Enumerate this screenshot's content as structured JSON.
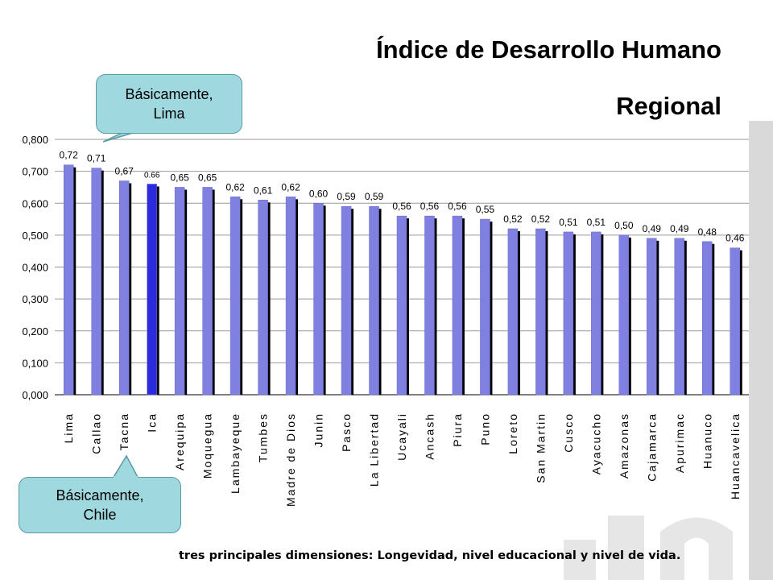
{
  "title": {
    "line1": "Índice de Desarrollo Humano",
    "line2": "Regional"
  },
  "callouts": {
    "lima": {
      "line1": "Básicamente,",
      "line2": "Lima"
    },
    "chile": {
      "line1": "Básicamente,",
      "line2": "Chile"
    }
  },
  "footer": "tres principales dimensiones: Longevidad, nivel educacional y nivel de vida.",
  "colors": {
    "bar": "#8080e0",
    "bar_dark": "#6a6acc",
    "highlight": "#2b2bdd",
    "shadow": "#000000",
    "callout_fill": "#9fd8df"
  },
  "chart_data": {
    "type": "bar",
    "categories": [
      "Lima",
      "Callao",
      "Tacna",
      "Ica",
      "Arequipa",
      "Moquegua",
      "Lambayeque",
      "Tumbes",
      "Madre de Dios",
      "Junin",
      "Pasco",
      "La Libertad",
      "Ucayali",
      "Ancash",
      "Piura",
      "Puno",
      "Loreto",
      "San Martin",
      "Cusco",
      "Ayacucho",
      "Amazonas",
      "Cajamarca",
      "Apurimac",
      "Huanuco",
      "Huancavelica"
    ],
    "values": [
      0.72,
      0.71,
      0.67,
      0.66,
      0.65,
      0.65,
      0.62,
      0.61,
      0.62,
      0.6,
      0.59,
      0.59,
      0.56,
      0.56,
      0.56,
      0.55,
      0.52,
      0.52,
      0.51,
      0.51,
      0.5,
      0.49,
      0.49,
      0.48,
      0.46
    ],
    "data_labels": [
      "0,72",
      "0,71",
      "0,67",
      "0.66",
      "0,65",
      "0,65",
      "0,62",
      "0,61",
      "0,62",
      "0,60",
      "0,59",
      "0,59",
      "0,56",
      "0,56",
      "0,56",
      "0,55",
      "0,52",
      "0,52",
      "0,51",
      "0,51",
      "0,50",
      "0,49",
      "0,49",
      "0,48",
      "0,46"
    ],
    "y_ticks": [
      "0,000",
      "0,100",
      "0,200",
      "0,300",
      "0,400",
      "0,500",
      "0,600",
      "0,700",
      "0,800"
    ],
    "ylim": [
      0,
      0.8
    ],
    "highlight_category": "Ica",
    "grid": true
  }
}
